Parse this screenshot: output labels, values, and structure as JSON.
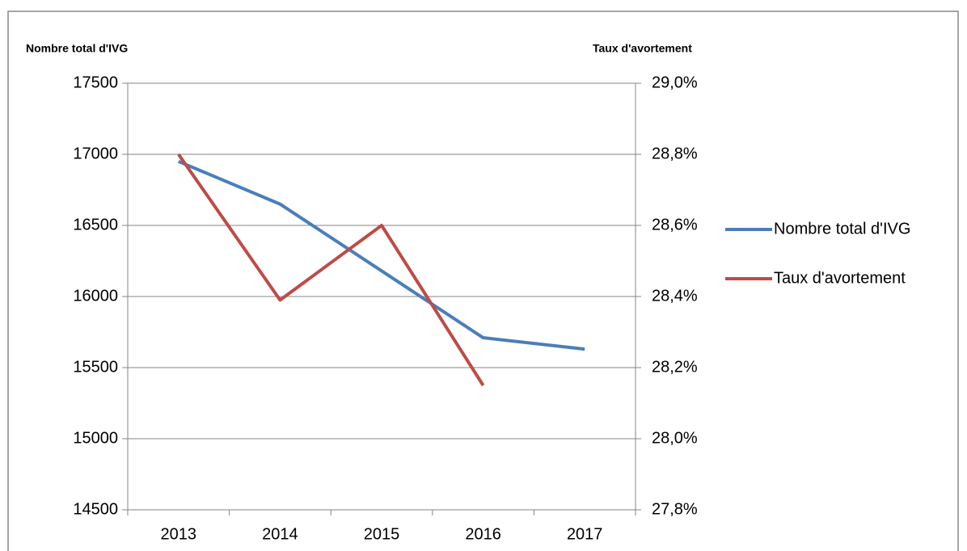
{
  "chart_data": {
    "type": "line",
    "y_title": "Nombre total d'IVG",
    "y2_title": "Taux d'avortement",
    "categories": [
      "2013",
      "2014",
      "2015",
      "2016",
      "2017"
    ],
    "series": [
      {
        "name": "Nombre total d'IVG",
        "color": "#4a7ebb",
        "values": [
          16950,
          16650,
          16180,
          15710,
          15630
        ]
      },
      {
        "name": "Taux d'avortement",
        "color": "#be4b48",
        "axis": "y2",
        "values": [
          28.8,
          28.39,
          28.6,
          28.15,
          null
        ]
      }
    ],
    "ylim": [
      14500,
      17500
    ],
    "yticks": [
      14500,
      15000,
      15500,
      16000,
      16500,
      17000,
      17500
    ],
    "y2lim": [
      27.8,
      29.0
    ],
    "y2ticks": [
      {
        "value": 27.8,
        "label": "27,8%"
      },
      {
        "value": 28.0,
        "label": "28,0%"
      },
      {
        "value": 28.2,
        "label": "28,2%"
      },
      {
        "value": 28.4,
        "label": "28,4%"
      },
      {
        "value": 28.6,
        "label": "28,6%"
      },
      {
        "value": 28.8,
        "label": "28,8%"
      },
      {
        "value": 29.0,
        "label": "29,0%"
      }
    ],
    "grid": true,
    "legend": "right"
  }
}
